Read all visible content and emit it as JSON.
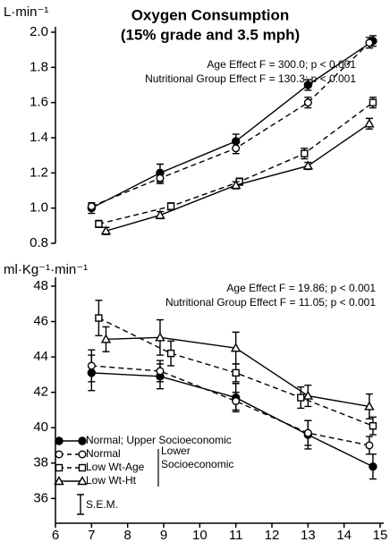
{
  "chart_data": [
    {
      "type": "line",
      "title": "Oxygen Consumption",
      "subtitle": "(15% grade and 3.5 mph)",
      "y_label": "L·min⁻¹",
      "annotations": [
        "Age Effect F = 300.0; p < 0.001",
        "Nutritional Group Effect F = 130.3; p < 0.001"
      ],
      "xlim": [
        6,
        15
      ],
      "ylim": [
        0.8,
        2.0
      ],
      "yticks": [
        0.8,
        {
          "value": 1,
          "label": "1.0"
        },
        1.2,
        1.4,
        1.6,
        1.8,
        {
          "value": 2,
          "label": "2.0"
        }
      ],
      "series": [
        {
          "color": "#000000",
          "marker": "filled-circle",
          "dash": false,
          "x": [
            7.0,
            8.9,
            11.0,
            13.0,
            14.8
          ],
          "values": [
            1.0,
            1.2,
            1.38,
            1.7,
            1.95
          ],
          "errors": [
            0.03,
            0.05,
            0.04,
            0.03,
            0.03
          ]
        },
        {
          "color": "#000000",
          "marker": "open-circle",
          "dash": true,
          "x": [
            7.0,
            8.9,
            11.0,
            13.0,
            14.7
          ],
          "values": [
            1.01,
            1.17,
            1.34,
            1.6,
            1.94
          ],
          "errors": [
            0.02,
            0.03,
            0.03,
            0.03,
            0.03
          ]
        },
        {
          "color": "#000000",
          "marker": "open-square",
          "dash": true,
          "x": [
            7.2,
            9.2,
            11.1,
            12.9,
            14.8
          ],
          "values": [
            0.91,
            1.01,
            1.15,
            1.31,
            1.6
          ],
          "errors": [
            0.02,
            0.02,
            0.02,
            0.03,
            0.03
          ]
        },
        {
          "color": "#000000",
          "marker": "open-triangle",
          "dash": false,
          "x": [
            7.4,
            8.9,
            11.0,
            13.0,
            14.7
          ],
          "values": [
            0.87,
            0.96,
            1.13,
            1.24,
            1.48
          ],
          "errors": [
            0.02,
            0.02,
            0.02,
            0.02,
            0.03
          ]
        }
      ]
    },
    {
      "type": "line",
      "y_label": "ml·Kg⁻¹·min⁻¹",
      "annotations": [
        "Age Effect F = 19.86; p < 0.001",
        "Nutritional Group Effect F = 11.05; p < 0.001"
      ],
      "xlim": [
        6,
        15
      ],
      "xticks": [
        6,
        7,
        8,
        9,
        10,
        11,
        12,
        13,
        14,
        15
      ],
      "ylim": [
        34.6,
        48.2
      ],
      "yticks": [
        36,
        38,
        40,
        42,
        44,
        46,
        48
      ],
      "legend": "lower-left",
      "legend_group_label": [
        "Lower",
        "Socioeconomic"
      ],
      "legend_error_label": "S.E.M.",
      "series": [
        {
          "name": "Normal; Upper Socioeconomic",
          "color": "#000000",
          "marker": "filled-circle",
          "dash": false,
          "x": [
            7.0,
            8.9,
            11.0,
            13.0,
            14.8
          ],
          "values": [
            43.1,
            42.9,
            41.7,
            39.6,
            37.8
          ],
          "errors": [
            1.0,
            0.7,
            0.8,
            0.8,
            0.7
          ]
        },
        {
          "name": "Normal",
          "color": "#000000",
          "marker": "open-circle",
          "dash": true,
          "x": [
            7.0,
            8.9,
            11.0,
            13.0,
            14.7
          ],
          "values": [
            43.5,
            43.2,
            41.5,
            39.7,
            39.0
          ],
          "errors": [
            0.9,
            0.6,
            0.5,
            0.7,
            0.5
          ]
        },
        {
          "name": "Low Wt-Age",
          "color": "#000000",
          "marker": "open-square",
          "dash": true,
          "x": [
            7.2,
            9.2,
            11.0,
            12.8,
            14.8
          ],
          "values": [
            46.2,
            44.2,
            43.1,
            41.7,
            40.1
          ],
          "errors": [
            1.0,
            0.7,
            0.5,
            0.6,
            0.5
          ]
        },
        {
          "name": "Low Wt-Ht",
          "color": "#000000",
          "marker": "open-triangle",
          "dash": false,
          "x": [
            7.4,
            8.9,
            11.0,
            13.0,
            14.7
          ],
          "values": [
            45.0,
            45.1,
            44.5,
            41.8,
            41.2
          ],
          "errors": [
            0.7,
            1.0,
            0.9,
            0.6,
            0.7
          ]
        }
      ]
    }
  ]
}
